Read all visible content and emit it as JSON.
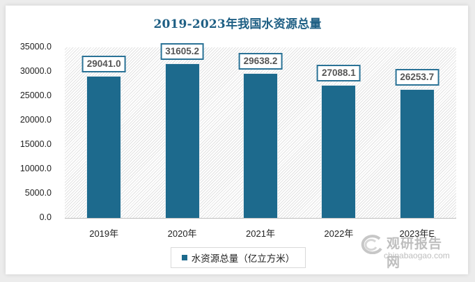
{
  "title": "2019-2023年我国水资源总量",
  "legend": {
    "label": "水资源总量（亿立方米）",
    "color": "#1d6a8d"
  },
  "watermark": {
    "cn": "观研报告网",
    "en": "chinabaogao.com"
  },
  "yticks": [
    "35000.0",
    "30000.0",
    "25000.0",
    "20000.0",
    "15000.0",
    "10000.0",
    "5000.0",
    "0.0"
  ],
  "chart_data": {
    "type": "bar",
    "title": "2019-2023年我国水资源总量",
    "categories": [
      "2019年",
      "2020年",
      "2021年",
      "2022年",
      "2023年E"
    ],
    "series": [
      {
        "name": "水资源总量（亿立方米）",
        "values": [
          29041.0,
          31605.2,
          29638.2,
          27088.1,
          26253.7
        ]
      }
    ],
    "value_labels": [
      "29041.0",
      "31605.2",
      "29638.2",
      "27088.1",
      "26253.7"
    ],
    "xlabel": "",
    "ylabel": "",
    "ylim": [
      0,
      35000
    ],
    "ytick_step": 5000,
    "grid": false,
    "legend_position": "bottom",
    "bar_color": "#1d6a8d"
  }
}
